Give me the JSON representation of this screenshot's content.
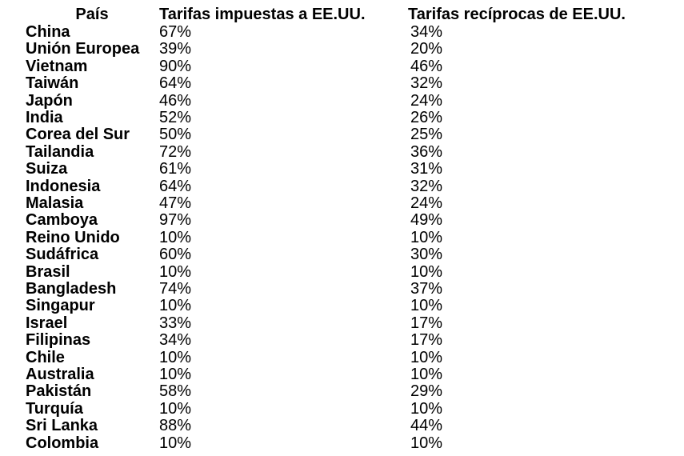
{
  "table": {
    "header": [
      "País",
      "Tarifas impuestas a EE.UU.",
      "Tarifas recíprocas de EE.UU."
    ],
    "rows": [
      [
        "China",
        "67%",
        "34%"
      ],
      [
        "Unión Europea",
        "39%",
        "20%"
      ],
      [
        "Vietnam",
        "90%",
        "46%"
      ],
      [
        "Taiwán",
        "64%",
        "32%"
      ],
      [
        "Japón",
        "46%",
        "24%"
      ],
      [
        "India",
        "52%",
        "26%"
      ],
      [
        "Corea del Sur",
        "50%",
        "25%"
      ],
      [
        "Tailandia",
        "72%",
        "36%"
      ],
      [
        "Suiza",
        "61%",
        "31%"
      ],
      [
        "Indonesia",
        "64%",
        "32%"
      ],
      [
        "Malasia",
        "47%",
        "24%"
      ],
      [
        "Camboya",
        "97%",
        "49%"
      ],
      [
        "Reino Unido",
        "10%",
        "10%"
      ],
      [
        "Sudáfrica",
        "60%",
        "30%"
      ],
      [
        "Brasil",
        "10%",
        "10%"
      ],
      [
        "Bangladesh",
        "74%",
        "37%"
      ],
      [
        "Singapur",
        "10%",
        "10%"
      ],
      [
        "Israel",
        "33%",
        "17%"
      ],
      [
        "Filipinas",
        "34%",
        "17%"
      ],
      [
        "Chile",
        "10%",
        "10%"
      ],
      [
        "Australia",
        "10%",
        "10%"
      ],
      [
        "Pakistán",
        "58%",
        "29%"
      ],
      [
        "Turquía",
        "10%",
        "10%"
      ],
      [
        "Sri Lanka",
        "88%",
        "44%"
      ],
      [
        "Colombia",
        "10%",
        "10%"
      ]
    ]
  }
}
